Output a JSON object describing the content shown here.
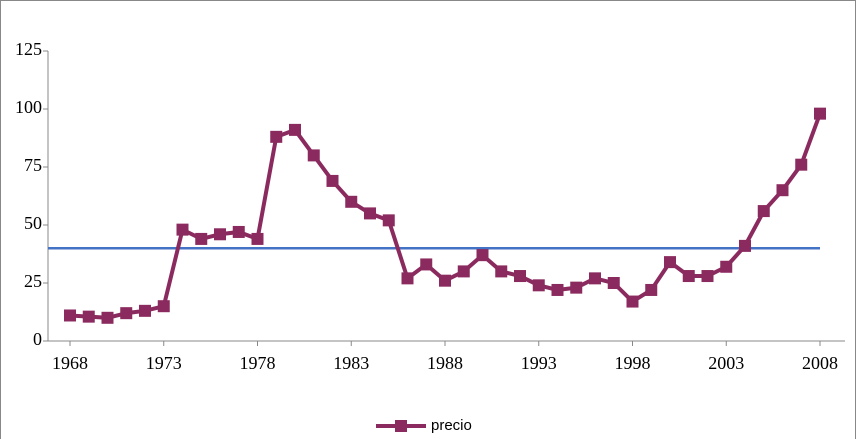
{
  "chart_data": {
    "type": "line",
    "x": [
      1968,
      1969,
      1970,
      1971,
      1972,
      1973,
      1974,
      1975,
      1976,
      1977,
      1978,
      1979,
      1980,
      1981,
      1982,
      1983,
      1984,
      1985,
      1986,
      1987,
      1988,
      1989,
      1990,
      1991,
      1992,
      1993,
      1994,
      1995,
      1996,
      1997,
      1998,
      1999,
      2000,
      2001,
      2002,
      2003,
      2004,
      2005,
      2006,
      2007,
      2008
    ],
    "series": [
      {
        "name": "precio",
        "color": "#8b2a5e",
        "values": [
          11,
          10.5,
          10,
          12,
          13,
          15,
          48,
          44,
          46,
          47,
          44,
          88,
          91,
          80,
          69,
          60,
          55,
          52,
          27,
          33,
          26,
          30,
          37,
          30,
          28,
          24,
          22,
          23,
          27,
          25,
          17,
          22,
          34,
          28,
          28,
          32,
          41,
          56,
          65,
          76,
          98
        ]
      }
    ],
    "reference_line": {
      "value": 40,
      "color": "#4472c4"
    },
    "xlim": [
      1968,
      2008
    ],
    "xticks": [
      1968,
      1973,
      1978,
      1983,
      1988,
      1993,
      1998,
      2003,
      2008
    ],
    "ylim": [
      0,
      125
    ],
    "yticks": [
      0,
      25,
      50,
      75,
      100,
      125
    ],
    "legend": "bottom"
  }
}
